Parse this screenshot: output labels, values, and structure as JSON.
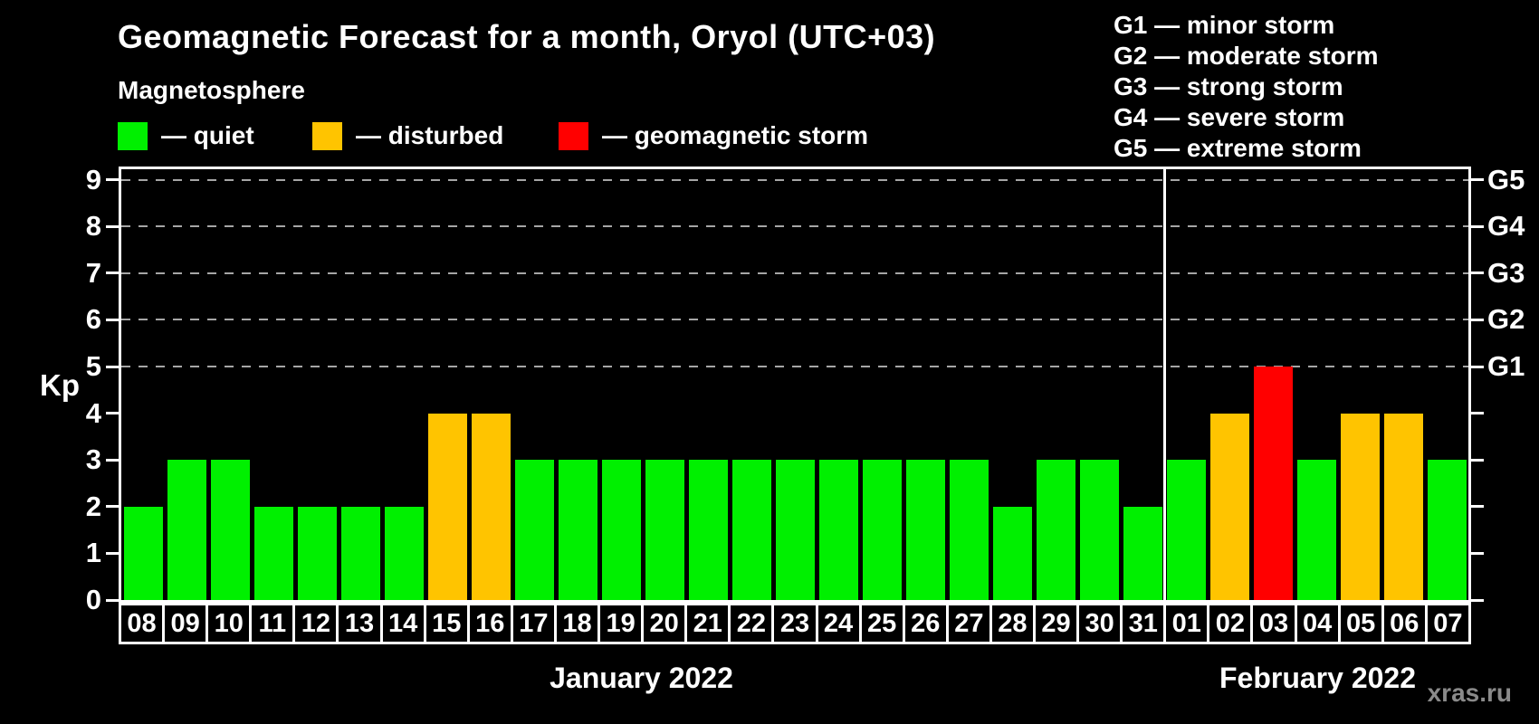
{
  "header": {
    "title": "Geomagnetic Forecast for a month, Oryol (UTC+03)",
    "subtitle": "Magnetosphere"
  },
  "legend": {
    "items": [
      {
        "label": "— quiet",
        "status": "quiet",
        "color": "#00F000"
      },
      {
        "label": "— disturbed",
        "status": "disturbed",
        "color": "#FFC400"
      },
      {
        "label": "— geomagnetic storm",
        "status": "storm",
        "color": "#FF0000"
      }
    ]
  },
  "g_legend": {
    "items": [
      "G1 — minor storm",
      "G2 — moderate storm",
      "G3 — strong storm",
      "G4 — severe storm",
      "G5 — extreme storm"
    ]
  },
  "watermark": "xras.ru",
  "chart_data": {
    "type": "bar",
    "title": "Geomagnetic Forecast for a month, Oryol (UTC+03)",
    "ylabel": "Kp",
    "ylim": [
      0,
      9.35
    ],
    "y_ticks": [
      0,
      1,
      2,
      3,
      4,
      5,
      6,
      7,
      8,
      9
    ],
    "gridlines_at": [
      5,
      6,
      7,
      8,
      9
    ],
    "grid": "dashed horizontal at Kp 5-9",
    "right_axis_labels": {
      "5": "G1",
      "6": "G2",
      "7": "G3",
      "8": "G4",
      "9": "G5"
    },
    "status_colors": {
      "quiet": "#00F000",
      "disturbed": "#FFC400",
      "storm": "#FF0000"
    },
    "months": [
      {
        "label": "January 2022",
        "days": [
          {
            "date": "08",
            "kp": 2,
            "status": "quiet"
          },
          {
            "date": "09",
            "kp": 3,
            "status": "quiet"
          },
          {
            "date": "10",
            "kp": 3,
            "status": "quiet"
          },
          {
            "date": "11",
            "kp": 2,
            "status": "quiet"
          },
          {
            "date": "12",
            "kp": 2,
            "status": "quiet"
          },
          {
            "date": "13",
            "kp": 2,
            "status": "quiet"
          },
          {
            "date": "14",
            "kp": 2,
            "status": "quiet"
          },
          {
            "date": "15",
            "kp": 4,
            "status": "disturbed"
          },
          {
            "date": "16",
            "kp": 4,
            "status": "disturbed"
          },
          {
            "date": "17",
            "kp": 3,
            "status": "quiet"
          },
          {
            "date": "18",
            "kp": 3,
            "status": "quiet"
          },
          {
            "date": "19",
            "kp": 3,
            "status": "quiet"
          },
          {
            "date": "20",
            "kp": 3,
            "status": "quiet"
          },
          {
            "date": "21",
            "kp": 3,
            "status": "quiet"
          },
          {
            "date": "22",
            "kp": 3,
            "status": "quiet"
          },
          {
            "date": "23",
            "kp": 3,
            "status": "quiet"
          },
          {
            "date": "24",
            "kp": 3,
            "status": "quiet"
          },
          {
            "date": "25",
            "kp": 3,
            "status": "quiet"
          },
          {
            "date": "26",
            "kp": 3,
            "status": "quiet"
          },
          {
            "date": "27",
            "kp": 3,
            "status": "quiet"
          },
          {
            "date": "28",
            "kp": 2,
            "status": "quiet"
          },
          {
            "date": "29",
            "kp": 3,
            "status": "quiet"
          },
          {
            "date": "30",
            "kp": 3,
            "status": "quiet"
          },
          {
            "date": "31",
            "kp": 2,
            "status": "quiet"
          }
        ]
      },
      {
        "label": "February 2022",
        "days": [
          {
            "date": "01",
            "kp": 3,
            "status": "quiet"
          },
          {
            "date": "02",
            "kp": 4,
            "status": "disturbed"
          },
          {
            "date": "03",
            "kp": 5,
            "status": "storm"
          },
          {
            "date": "04",
            "kp": 3,
            "status": "quiet"
          },
          {
            "date": "05",
            "kp": 4,
            "status": "disturbed"
          },
          {
            "date": "06",
            "kp": 4,
            "status": "disturbed"
          },
          {
            "date": "07",
            "kp": 3,
            "status": "quiet"
          }
        ]
      }
    ]
  }
}
